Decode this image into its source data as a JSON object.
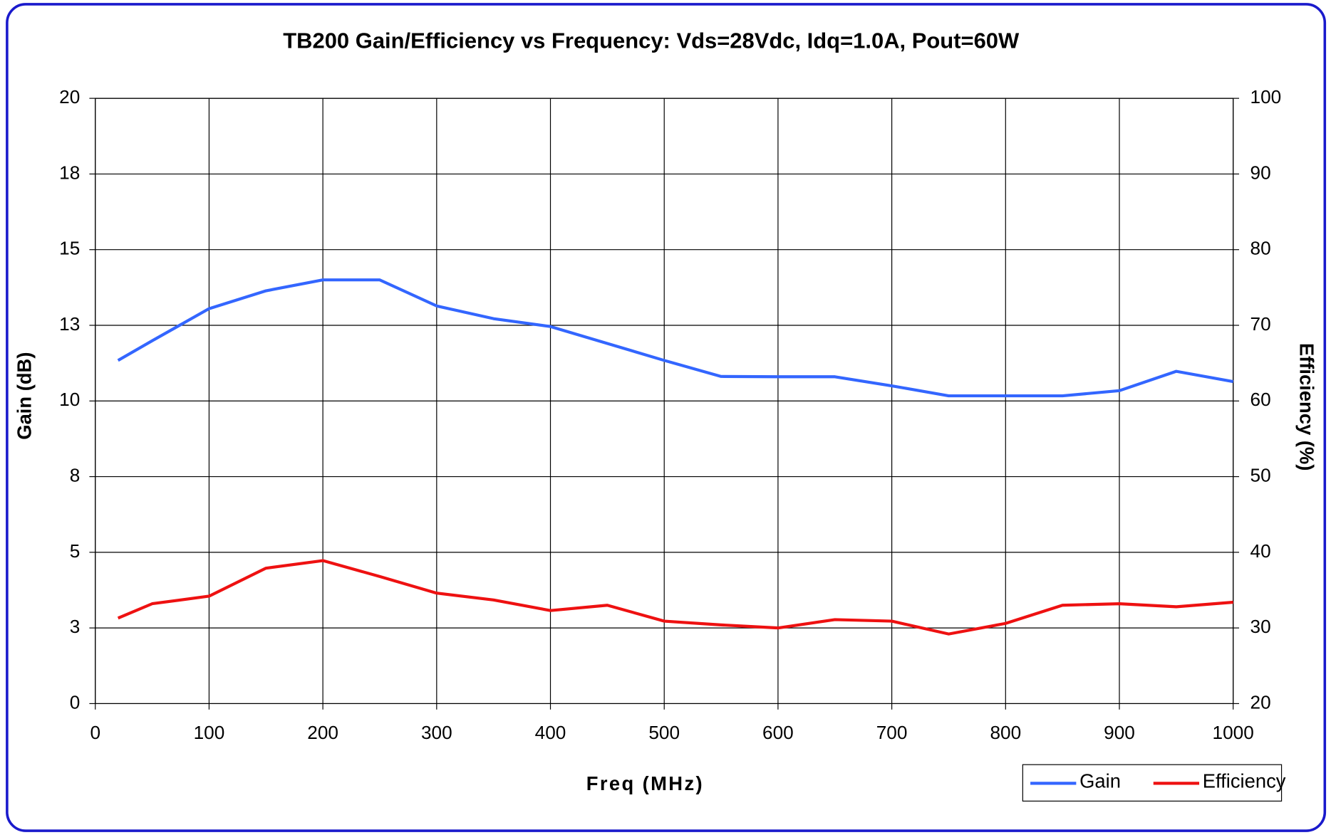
{
  "chart_data": {
    "type": "line",
    "title": "TB200  Gain/Efficiency vs Frequency: Vds=28Vdc, Idq=1.0A, Pout=60W",
    "x_label": "Freq (MHz)",
    "y_label": "Gain (dB)",
    "y2_label": "Efficiency (%)",
    "x": [
      20,
      50,
      100,
      150,
      200,
      250,
      300,
      350,
      400,
      450,
      500,
      550,
      600,
      650,
      700,
      750,
      800,
      850,
      900,
      950,
      1000
    ],
    "series": [
      {
        "name": "Gain",
        "color": "#3366ff",
        "axis": "y",
        "values": [
          11.34,
          11.99,
          13.05,
          13.64,
          14.0,
          14.0,
          13.14,
          12.72,
          12.46,
          11.9,
          11.34,
          10.81,
          10.8,
          10.8,
          10.5,
          10.17,
          10.17,
          10.17,
          10.34,
          10.98,
          10.64
        ]
      },
      {
        "name": "Efficiency",
        "color": "#ee1111",
        "axis": "y2",
        "values": [
          31.3,
          33.2,
          34.2,
          37.9,
          38.9,
          36.8,
          34.6,
          33.7,
          32.3,
          33.0,
          30.9,
          30.4,
          30.0,
          31.1,
          30.9,
          29.2,
          30.6,
          33.0,
          33.2,
          32.8,
          33.4
        ]
      }
    ],
    "xlim": [
      0,
      1000
    ],
    "xticks": [
      0,
      100,
      200,
      300,
      400,
      500,
      600,
      700,
      800,
      900,
      1000
    ],
    "ylim": [
      0,
      20
    ],
    "yticks": [
      0,
      {
        "value": 2.5,
        "label": "3"
      },
      5,
      {
        "value": 7.5,
        "label": "8"
      },
      10,
      {
        "value": 12.5,
        "label": "13"
      },
      15,
      {
        "value": 17.5,
        "label": "18"
      },
      20
    ],
    "y2lim": [
      20,
      100
    ],
    "y2ticks": [
      20,
      30,
      40,
      50,
      60,
      70,
      80,
      90,
      100
    ],
    "grid": true,
    "legend": "bottom-right"
  }
}
